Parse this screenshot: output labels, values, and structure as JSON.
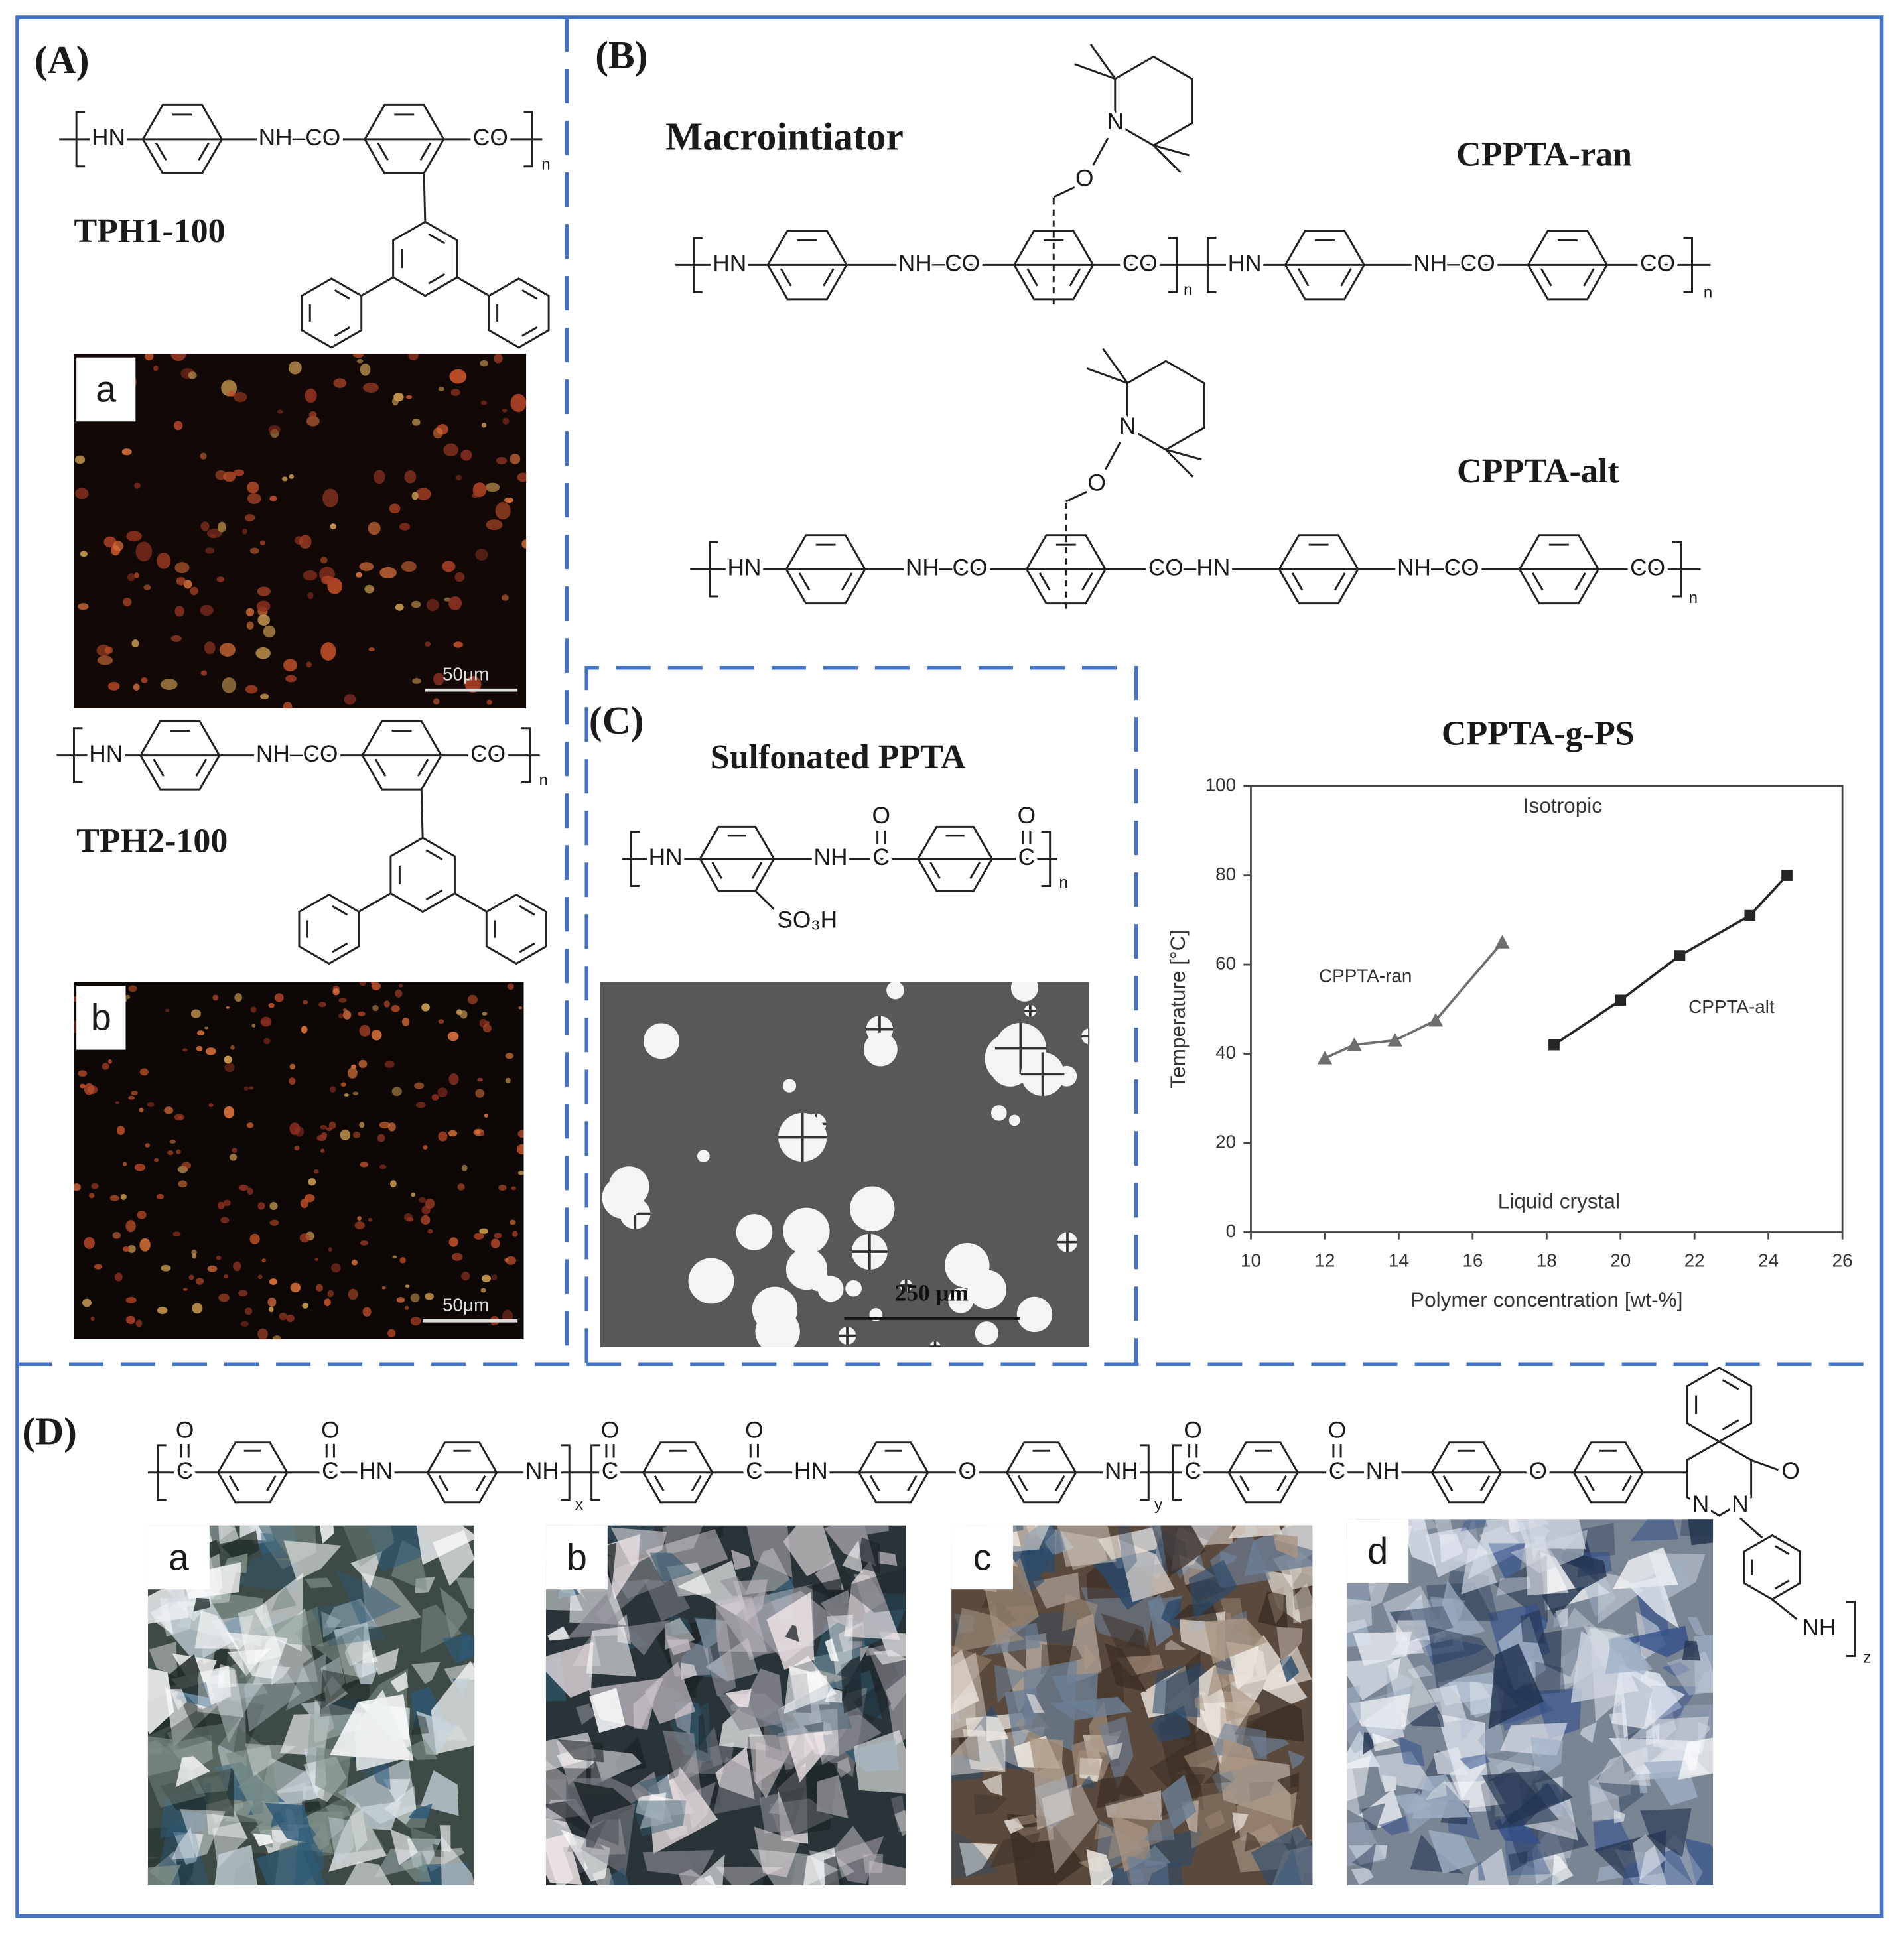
{
  "panels": {
    "A": {
      "label": "(A)",
      "structure_1": {
        "name": "TPH1-100",
        "atoms": [
          "HN",
          "NH–CO",
          "CO",
          "n"
        ]
      },
      "image_1": {
        "label": "a",
        "scale_bar": "50μm"
      },
      "structure_2": {
        "name": "TPH2-100",
        "atoms": [
          "HN",
          "NH–CO",
          "CO",
          "n"
        ]
      },
      "image_2": {
        "label": "b",
        "scale_bar": "50μm"
      }
    },
    "B": {
      "label": "(B)",
      "titles": [
        "Macrointiator",
        "CPPTA-ran",
        "CPPTA-alt"
      ],
      "structure_ran": {
        "atoms": [
          "O",
          "N",
          "HN",
          "NH–CO",
          "CO",
          "n",
          "HN",
          "NH–CO",
          "CO",
          "n"
        ]
      },
      "structure_alt": {
        "atoms": [
          "O",
          "N",
          "HN",
          "NH–CO",
          "CO–HN",
          "NH–CO",
          "CO",
          "n"
        ]
      }
    },
    "C": {
      "label": "(C)",
      "title": "Sulfonated PPTA",
      "structure": {
        "atoms": [
          "HN",
          "NH",
          "C",
          "O",
          "C",
          "O",
          "n",
          "SO₃H"
        ]
      },
      "image": {
        "scale_bar": "250 μm"
      }
    },
    "D": {
      "label": "(D)",
      "structure": {
        "atoms": [
          "C",
          "O",
          "C",
          "O",
          "HN",
          "NH",
          "x",
          "C",
          "O",
          "C",
          "O",
          "HN",
          "O",
          "NH",
          "y",
          "C",
          "O",
          "C",
          "O",
          "NH",
          "O",
          "O",
          "N",
          "N",
          "NH",
          "z"
        ]
      },
      "images": [
        "a",
        "b",
        "c",
        "d"
      ]
    }
  },
  "chart_data": {
    "type": "scatter",
    "title": "CPPTA-g-PS",
    "x_label": "Polymer concentration [wt-%]",
    "y_label": "Temperature [°C]",
    "annotations": [
      "Isotropic",
      "Liquid crystal"
    ],
    "xlim": [
      10,
      26
    ],
    "xticks": [
      10,
      12,
      14,
      16,
      18,
      20,
      22,
      24,
      26
    ],
    "ylim": [
      0,
      100
    ],
    "yticks": [
      0,
      20,
      40,
      60,
      80,
      100
    ],
    "grid": false,
    "series": [
      {
        "name": "CPPTA-ran",
        "color": "#6e6e6e",
        "marker": "triangle",
        "x": [
          12,
          12.8,
          13.9,
          15,
          16.8
        ],
        "values": [
          39,
          42,
          43,
          47.5,
          65
        ]
      },
      {
        "name": "CPPTA-alt",
        "color": "#262626",
        "marker": "square",
        "x": [
          18.2,
          20,
          21.6,
          23.5,
          24.5
        ],
        "values": [
          42,
          52,
          62,
          71,
          80
        ]
      }
    ]
  }
}
